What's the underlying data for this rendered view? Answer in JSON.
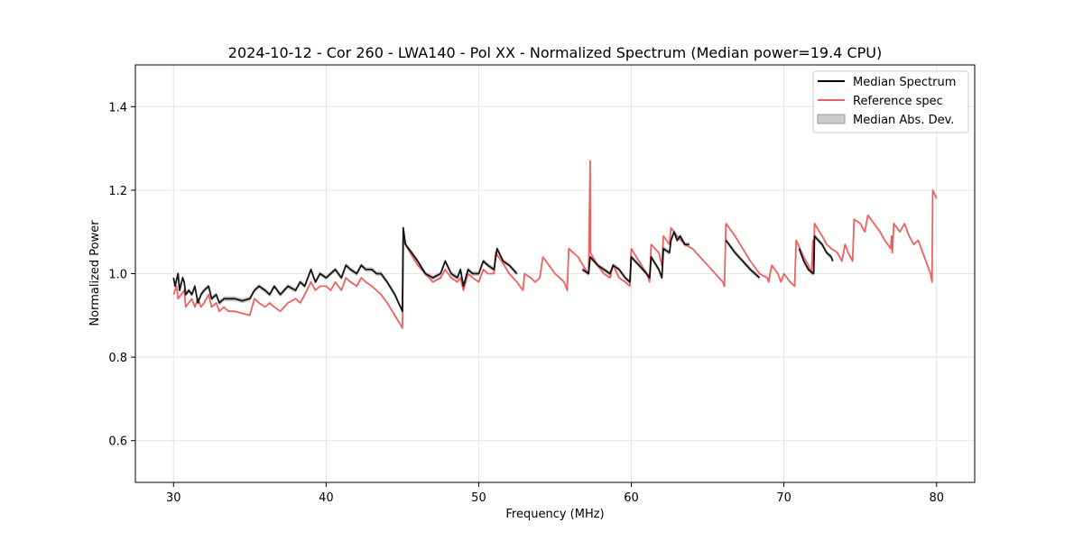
{
  "chart_data": {
    "type": "line",
    "title": "2024-10-12 - Cor 260 - LWA140 - Pol XX - Normalized Spectrum (Median power=19.4 CPU)",
    "xlabel": "Frequency (MHz)",
    "ylabel": "Normalized Power",
    "xlim": [
      27.5,
      82.5
    ],
    "ylim": [
      0.5,
      1.5
    ],
    "xticks": [
      30,
      40,
      50,
      60,
      70,
      80
    ],
    "xtick_labels": [
      "30",
      "40",
      "50",
      "60",
      "70",
      "80"
    ],
    "yticks": [
      0.6,
      0.8,
      1.0,
      1.2,
      1.4
    ],
    "ytick_labels": [
      "0.6",
      "0.8",
      "1.0",
      "1.2",
      "1.4"
    ],
    "grid": true,
    "legend_position": "top-right",
    "series": [
      {
        "name": "Median Spectrum",
        "color": "#000000",
        "segments": [
          [
            [
              30.0,
              0.99
            ],
            [
              30.1,
              0.97
            ],
            [
              30.3,
              1.0
            ],
            [
              30.4,
              0.96
            ],
            [
              30.6,
              0.99
            ],
            [
              30.7,
              0.98
            ],
            [
              30.8,
              0.95
            ],
            [
              31.0,
              0.96
            ],
            [
              31.2,
              0.95
            ],
            [
              31.4,
              0.97
            ],
            [
              31.6,
              0.93
            ],
            [
              31.8,
              0.95
            ],
            [
              32.0,
              0.96
            ],
            [
              32.3,
              0.97
            ],
            [
              32.5,
              0.94
            ],
            [
              32.8,
              0.95
            ],
            [
              33.0,
              0.93
            ],
            [
              33.3,
              0.94
            ],
            [
              33.6,
              0.94
            ],
            [
              34.0,
              0.94
            ],
            [
              34.5,
              0.935
            ],
            [
              35.0,
              0.94
            ],
            [
              35.3,
              0.96
            ],
            [
              35.6,
              0.97
            ],
            [
              36.0,
              0.96
            ],
            [
              36.3,
              0.95
            ],
            [
              36.6,
              0.97
            ],
            [
              37.0,
              0.95
            ],
            [
              37.5,
              0.97
            ],
            [
              38.0,
              0.96
            ],
            [
              38.3,
              0.98
            ],
            [
              38.6,
              0.97
            ],
            [
              39.0,
              1.01
            ],
            [
              39.3,
              0.98
            ],
            [
              39.6,
              1.0
            ],
            [
              40.0,
              0.99
            ],
            [
              40.3,
              1.0
            ],
            [
              40.6,
              1.01
            ],
            [
              41.0,
              0.99
            ],
            [
              41.3,
              1.02
            ],
            [
              41.6,
              1.01
            ],
            [
              42.0,
              1.0
            ],
            [
              42.3,
              1.02
            ],
            [
              42.6,
              1.01
            ],
            [
              43.0,
              1.01
            ],
            [
              43.3,
              1.0
            ],
            [
              43.6,
              1.0
            ],
            [
              44.0,
              0.98
            ],
            [
              44.5,
              0.95
            ],
            [
              45.0,
              0.91
            ],
            [
              45.05,
              1.11
            ],
            [
              45.2,
              1.07
            ],
            [
              45.6,
              1.05
            ],
            [
              46.0,
              1.03
            ],
            [
              46.5,
              1.0
            ],
            [
              47.0,
              0.99
            ],
            [
              47.5,
              1.0
            ],
            [
              47.8,
              1.03
            ],
            [
              48.2,
              1.0
            ],
            [
              48.6,
              0.99
            ],
            [
              48.8,
              1.01
            ],
            [
              49.0,
              0.97
            ],
            [
              49.3,
              1.01
            ],
            [
              49.6,
              1.0
            ],
            [
              50.0,
              1.0
            ],
            [
              50.3,
              1.03
            ],
            [
              50.6,
              1.02
            ],
            [
              51.0,
              1.01
            ],
            [
              51.2,
              1.06
            ],
            [
              51.6,
              1.03
            ],
            [
              52.0,
              1.02
            ],
            [
              52.5,
              1.0
            ]
          ],
          [
            [
              56.8,
              1.01
            ],
            [
              57.2,
              1.0
            ],
            [
              57.3,
              1.04
            ],
            [
              57.8,
              1.02
            ],
            [
              58.2,
              1.01
            ],
            [
              58.6,
              1.0
            ],
            [
              58.8,
              1.02
            ],
            [
              59.2,
              1.01
            ],
            [
              59.6,
              0.99
            ],
            [
              59.9,
              0.98
            ],
            [
              60.0,
              1.04
            ],
            [
              60.5,
              1.02
            ],
            [
              61.0,
              1.0
            ],
            [
              61.2,
              0.99
            ],
            [
              61.3,
              1.04
            ],
            [
              61.8,
              1.01
            ],
            [
              62.0,
              0.99
            ],
            [
              62.1,
              1.06
            ],
            [
              62.5,
              1.05
            ],
            [
              62.6,
              1.08
            ],
            [
              62.8,
              1.1
            ],
            [
              63.0,
              1.08
            ],
            [
              63.2,
              1.09
            ],
            [
              63.5,
              1.07
            ],
            [
              63.8,
              1.07
            ]
          ],
          [
            [
              66.2,
              1.08
            ],
            [
              66.8,
              1.05
            ],
            [
              67.3,
              1.03
            ],
            [
              67.8,
              1.01
            ],
            [
              68.4,
              0.99
            ]
          ],
          [
            [
              71.0,
              1.06
            ],
            [
              71.3,
              1.03
            ],
            [
              71.6,
              1.01
            ],
            [
              71.95,
              1.0
            ],
            [
              72.0,
              1.09
            ],
            [
              72.5,
              1.07
            ],
            [
              72.8,
              1.05
            ],
            [
              73.1,
              1.04
            ],
            [
              73.2,
              1.03
            ]
          ]
        ]
      },
      {
        "name": "Reference spec",
        "color": "#f06060",
        "segments": [
          [
            [
              30.0,
              0.95
            ],
            [
              30.2,
              0.97
            ],
            [
              30.3,
              0.94
            ],
            [
              30.5,
              0.95
            ],
            [
              30.7,
              0.96
            ],
            [
              30.8,
              0.92
            ],
            [
              31.0,
              0.93
            ],
            [
              31.2,
              0.94
            ],
            [
              31.4,
              0.92
            ],
            [
              31.6,
              0.94
            ],
            [
              31.8,
              0.92
            ],
            [
              32.0,
              0.93
            ],
            [
              32.3,
              0.95
            ],
            [
              32.5,
              0.92
            ],
            [
              32.8,
              0.93
            ],
            [
              33.0,
              0.91
            ],
            [
              33.3,
              0.92
            ],
            [
              33.6,
              0.91
            ],
            [
              34.0,
              0.91
            ],
            [
              34.5,
              0.905
            ],
            [
              35.0,
              0.9
            ],
            [
              35.3,
              0.94
            ],
            [
              35.6,
              0.93
            ],
            [
              36.0,
              0.92
            ],
            [
              36.3,
              0.93
            ],
            [
              36.6,
              0.92
            ],
            [
              37.0,
              0.91
            ],
            [
              37.5,
              0.93
            ],
            [
              38.0,
              0.94
            ],
            [
              38.3,
              0.93
            ],
            [
              38.6,
              0.95
            ],
            [
              39.0,
              0.98
            ],
            [
              39.3,
              0.96
            ],
            [
              39.6,
              0.97
            ],
            [
              40.0,
              0.97
            ],
            [
              40.3,
              0.96
            ],
            [
              40.6,
              0.98
            ],
            [
              41.0,
              0.96
            ],
            [
              41.3,
              0.99
            ],
            [
              41.6,
              0.98
            ],
            [
              42.0,
              0.97
            ],
            [
              42.3,
              0.99
            ],
            [
              42.6,
              0.98
            ],
            [
              43.0,
              0.97
            ],
            [
              43.3,
              0.96
            ],
            [
              43.6,
              0.95
            ],
            [
              44.0,
              0.93
            ],
            [
              44.5,
              0.9
            ],
            [
              45.0,
              0.87
            ],
            [
              45.05,
              1.08
            ],
            [
              45.5,
              1.05
            ],
            [
              46.0,
              1.02
            ],
            [
              46.5,
              1.0
            ],
            [
              47.0,
              0.98
            ],
            [
              47.5,
              0.99
            ],
            [
              47.8,
              1.01
            ],
            [
              48.2,
              0.99
            ],
            [
              48.6,
              0.98
            ],
            [
              48.8,
              0.99
            ],
            [
              49.0,
              0.96
            ],
            [
              49.3,
              1.0
            ],
            [
              49.6,
              0.99
            ],
            [
              50.0,
              0.98
            ],
            [
              50.3,
              1.01
            ],
            [
              50.6,
              1.0
            ],
            [
              51.0,
              1.0
            ],
            [
              51.1,
              1.05
            ],
            [
              51.5,
              1.03
            ],
            [
              52.0,
              1.0
            ],
            [
              52.5,
              0.98
            ],
            [
              52.9,
              0.96
            ],
            [
              53.0,
              1.0
            ],
            [
              53.4,
              0.99
            ],
            [
              53.7,
              0.98
            ],
            [
              54.0,
              0.99
            ],
            [
              54.2,
              1.04
            ],
            [
              54.6,
              1.02
            ],
            [
              55.0,
              1.0
            ],
            [
              55.3,
              0.99
            ],
            [
              55.6,
              0.98
            ],
            [
              55.8,
              0.96
            ],
            [
              55.9,
              1.06
            ],
            [
              56.5,
              1.04
            ],
            [
              57.0,
              1.01
            ],
            [
              57.2,
              1.0
            ],
            [
              57.3,
              1.27
            ],
            [
              57.32,
              1.05
            ],
            [
              57.8,
              1.02
            ],
            [
              58.2,
              1.0
            ],
            [
              58.6,
              0.99
            ],
            [
              58.8,
              1.02
            ],
            [
              59.2,
              0.99
            ],
            [
              59.6,
              0.98
            ],
            [
              59.9,
              0.97
            ],
            [
              60.0,
              1.06
            ],
            [
              60.5,
              1.03
            ],
            [
              61.0,
              1.0
            ],
            [
              61.2,
              0.98
            ],
            [
              61.3,
              1.07
            ],
            [
              61.8,
              1.05
            ],
            [
              62.0,
              1.02
            ],
            [
              62.1,
              1.09
            ],
            [
              62.5,
              1.07
            ],
            [
              62.6,
              1.11
            ],
            [
              63.0,
              1.09
            ],
            [
              63.5,
              1.07
            ],
            [
              64.0,
              1.06
            ],
            [
              64.5,
              1.04
            ],
            [
              65.0,
              1.02
            ],
            [
              65.5,
              1.0
            ],
            [
              66.0,
              0.98
            ],
            [
              66.1,
              0.97
            ],
            [
              66.2,
              1.12
            ],
            [
              66.8,
              1.09
            ],
            [
              67.3,
              1.06
            ],
            [
              67.8,
              1.03
            ],
            [
              68.4,
              1.0
            ],
            [
              68.9,
              0.99
            ],
            [
              69.0,
              0.98
            ],
            [
              69.2,
              1.02
            ],
            [
              69.6,
              1.0
            ],
            [
              69.8,
              0.98
            ],
            [
              70.0,
              1.0
            ],
            [
              70.4,
              0.98
            ],
            [
              70.7,
              0.97
            ],
            [
              70.8,
              1.08
            ],
            [
              71.3,
              1.04
            ],
            [
              71.6,
              1.02
            ],
            [
              71.8,
              1.0
            ],
            [
              71.9,
              1.08
            ],
            [
              71.95,
              1.01
            ],
            [
              72.0,
              1.12
            ],
            [
              72.5,
              1.09
            ],
            [
              72.8,
              1.07
            ],
            [
              73.1,
              1.06
            ],
            [
              73.5,
              1.05
            ],
            [
              73.8,
              1.03
            ],
            [
              74.0,
              1.07
            ],
            [
              74.2,
              1.05
            ],
            [
              74.5,
              1.03
            ],
            [
              74.6,
              1.13
            ],
            [
              75.0,
              1.12
            ],
            [
              75.3,
              1.1
            ],
            [
              75.5,
              1.14
            ],
            [
              75.9,
              1.12
            ],
            [
              76.3,
              1.1
            ],
            [
              76.6,
              1.08
            ],
            [
              77.0,
              1.06
            ],
            [
              77.05,
              1.09
            ],
            [
              77.1,
              1.05
            ],
            [
              77.2,
              1.12
            ],
            [
              77.6,
              1.1
            ],
            [
              77.9,
              1.12
            ],
            [
              78.2,
              1.09
            ],
            [
              78.5,
              1.07
            ],
            [
              78.8,
              1.08
            ],
            [
              79.0,
              1.06
            ],
            [
              79.3,
              1.03
            ],
            [
              79.6,
              1.0
            ],
            [
              79.7,
              0.98
            ],
            [
              79.75,
              1.2
            ],
            [
              80.0,
              1.18
            ]
          ]
        ]
      },
      {
        "name": "Median Abs. Dev.",
        "color": "#999999",
        "type": "band",
        "halfwidth": 0.006
      }
    ]
  }
}
